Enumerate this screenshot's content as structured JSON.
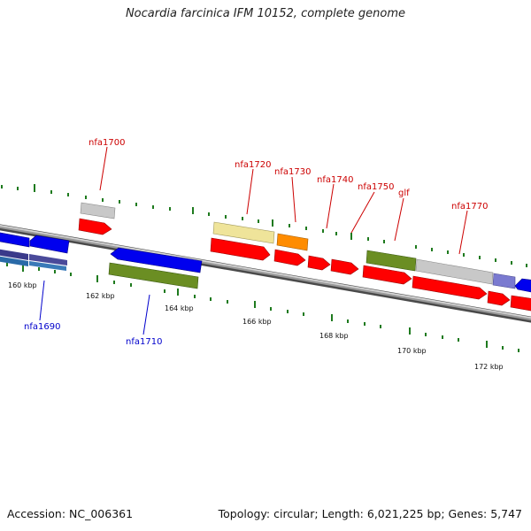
{
  "header": {
    "title": "Nocardia farcinica IFM 10152, complete genome"
  },
  "footer": {
    "accession": "Accession: NC_006361",
    "summary": "Topology: circular; Length: 6,021,225 bp; Genes: 5,747"
  },
  "scale": {
    "tick_labels": [
      "160 kbp",
      "162 kbp",
      "164 kbp",
      "166 kbp",
      "168 kbp",
      "170 kbp",
      "172 kbp"
    ]
  },
  "gene_labels": {
    "forward": [
      "nfa1700",
      "nfa1720",
      "nfa1730",
      "nfa1740",
      "nfa1750",
      "glf",
      "nfa1770"
    ],
    "reverse": [
      "nfa1690",
      "nfa1710"
    ]
  },
  "colors": {
    "forward_label": "#cc0000",
    "reverse_label": "#0000cc",
    "forward_gene": "#ff0000",
    "reverse_gene": "#0000ff",
    "backbone": "#7a7a7a",
    "tick": "#1e7a1e"
  }
}
